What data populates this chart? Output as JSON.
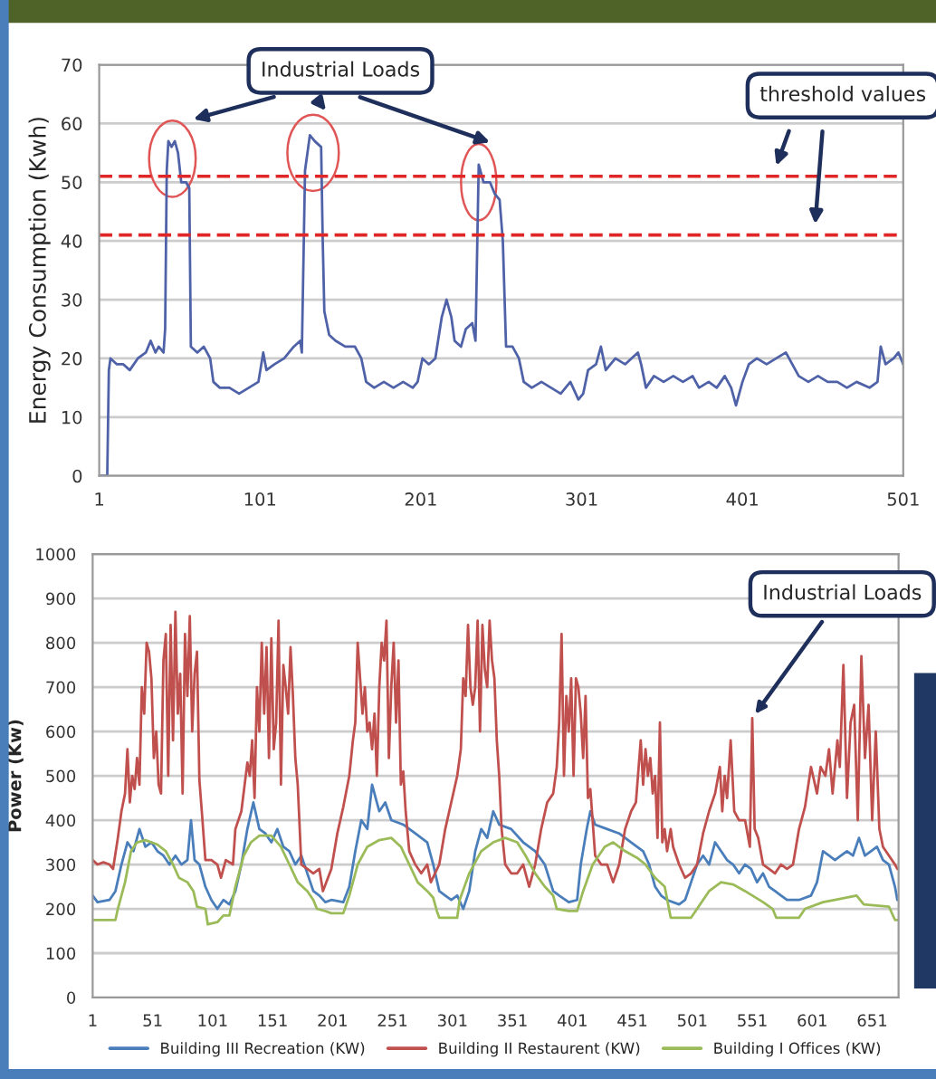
{
  "chart_data": [
    {
      "type": "line",
      "ylabel": "Energy Consumption (Kwh)",
      "xlim": [
        1,
        501
      ],
      "xticks": [
        1,
        101,
        201,
        301,
        401,
        501
      ],
      "ylim": [
        0,
        70
      ],
      "yticks": [
        0,
        10,
        20,
        30,
        40,
        50,
        60,
        70
      ],
      "grid": "y",
      "legend": false,
      "marker": "none",
      "line_style": "solid",
      "annotations": [
        "Industrial Loads",
        "threshold values"
      ],
      "ref_lines": [
        {
          "axis": "y",
          "value": 51,
          "color": "#e02626",
          "line_style": "dashed"
        },
        {
          "axis": "y",
          "value": 41,
          "color": "#e02626",
          "line_style": "dashed"
        }
      ],
      "series": [
        {
          "color": "#4f62a8",
          "x": [
            1,
            6,
            7,
            8,
            12,
            16,
            20,
            25,
            30,
            33,
            36,
            38,
            41,
            42,
            43,
            44,
            46,
            48,
            50,
            52,
            55,
            57,
            58,
            62,
            66,
            70,
            72,
            76,
            82,
            88,
            94,
            100,
            103,
            105,
            110,
            116,
            122,
            126,
            127,
            129,
            132,
            135,
            139,
            140,
            141,
            144,
            148,
            154,
            160,
            164,
            167,
            172,
            178,
            184,
            190,
            196,
            199,
            202,
            206,
            210,
            214,
            217,
            220,
            222,
            226,
            229,
            233,
            235,
            237,
            240,
            244,
            247,
            250,
            252,
            254,
            258,
            262,
            265,
            270,
            276,
            282,
            288,
            294,
            299,
            302,
            305,
            310,
            313,
            316,
            322,
            328,
            332,
            336,
            338,
            341,
            346,
            352,
            358,
            364,
            370,
            374,
            380,
            385,
            390,
            394,
            397,
            401,
            405,
            410,
            416,
            422,
            428,
            432,
            436,
            442,
            448,
            454,
            460,
            466,
            472,
            480,
            485,
            487,
            490,
            495,
            498,
            501
          ],
          "values": [
            0,
            0,
            18,
            20,
            19,
            19,
            18,
            20,
            21,
            23,
            21,
            22,
            21,
            25,
            52,
            57,
            56,
            57,
            55,
            50,
            50,
            49,
            22,
            21,
            22,
            20,
            16,
            15,
            15,
            14,
            15,
            16,
            21,
            18,
            19,
            20,
            22,
            23,
            21,
            52,
            58,
            57,
            56,
            40,
            28,
            24,
            23,
            22,
            22,
            20,
            16,
            15,
            16,
            15,
            16,
            15,
            16,
            20,
            19,
            20,
            27,
            30,
            27,
            23,
            22,
            25,
            26,
            23,
            53,
            50,
            50,
            48,
            47,
            40,
            22,
            22,
            20,
            16,
            15,
            16,
            15,
            14,
            16,
            13,
            14,
            18,
            19,
            22,
            18,
            20,
            19,
            20,
            21,
            19,
            15,
            17,
            16,
            17,
            16,
            17,
            15,
            16,
            15,
            17,
            15,
            12,
            16,
            19,
            20,
            19,
            20,
            21,
            19,
            17,
            16,
            17,
            16,
            16,
            15,
            16,
            15,
            16,
            22,
            19,
            20,
            21,
            19
          ]
        }
      ]
    },
    {
      "type": "line",
      "ylabel": "Power (Kw)",
      "xlim": [
        1,
        673
      ],
      "xticks": [
        1,
        51,
        101,
        151,
        201,
        251,
        301,
        351,
        401,
        451,
        501,
        551,
        601,
        651
      ],
      "ylim": [
        0,
        1000
      ],
      "yticks": [
        0,
        100,
        200,
        300,
        400,
        500,
        600,
        700,
        800,
        900,
        1000
      ],
      "grid": "y",
      "legend": "bottom",
      "marker": "none",
      "line_style": "solid",
      "annotations": [
        {
          "text": "Industrial Loads",
          "x": 551,
          "y": 630
        }
      ],
      "series": [
        {
          "name": "Building III Recreation (KW)",
          "color": "#4a7ebb",
          "x": [
            1,
            5,
            15,
            20,
            25,
            30,
            35,
            40,
            45,
            50,
            55,
            60,
            65,
            70,
            75,
            80,
            83,
            86,
            90,
            95,
            100,
            105,
            110,
            115,
            120,
            125,
            130,
            135,
            140,
            145,
            150,
            155,
            160,
            165,
            170,
            175,
            180,
            185,
            190,
            195,
            200,
            210,
            215,
            220,
            225,
            230,
            234,
            240,
            245,
            250,
            260,
            270,
            280,
            285,
            290,
            295,
            300,
            305,
            310,
            315,
            320,
            325,
            330,
            335,
            340,
            350,
            360,
            370,
            378,
            385,
            390,
            398,
            405,
            408,
            413,
            416,
            420,
            430,
            440,
            450,
            460,
            465,
            470,
            475,
            480,
            490,
            495,
            500,
            505,
            510,
            515,
            520,
            525,
            530,
            535,
            540,
            545,
            550,
            555,
            560,
            565,
            570,
            575,
            580,
            590,
            600,
            605,
            610,
            615,
            620,
            625,
            630,
            635,
            640,
            645,
            650,
            655,
            660,
            665,
            670,
            672
          ],
          "values": [
            230,
            215,
            220,
            240,
            300,
            350,
            330,
            380,
            340,
            350,
            330,
            320,
            300,
            320,
            300,
            310,
            400,
            310,
            300,
            250,
            220,
            200,
            220,
            210,
            240,
            300,
            380,
            440,
            380,
            370,
            350,
            380,
            340,
            330,
            300,
            320,
            280,
            240,
            230,
            215,
            220,
            215,
            250,
            330,
            400,
            380,
            480,
            420,
            440,
            400,
            390,
            370,
            350,
            300,
            240,
            230,
            220,
            230,
            200,
            240,
            330,
            380,
            360,
            420,
            390,
            380,
            350,
            330,
            300,
            240,
            230,
            215,
            220,
            300,
            380,
            420,
            390,
            380,
            370,
            350,
            330,
            300,
            250,
            230,
            220,
            210,
            220,
            260,
            300,
            320,
            300,
            350,
            330,
            310,
            300,
            280,
            300,
            290,
            260,
            280,
            250,
            240,
            230,
            220,
            220,
            230,
            260,
            330,
            320,
            310,
            320,
            330,
            320,
            360,
            320,
            330,
            340,
            310,
            300,
            250,
            220
          ]
        },
        {
          "name": "Building II Restaurent (KW)",
          "color": "#c0504d",
          "x": [
            1,
            5,
            10,
            15,
            18,
            22,
            25,
            28,
            30,
            32,
            34,
            36,
            38,
            40,
            42,
            44,
            46,
            48,
            50,
            52,
            54,
            56,
            58,
            60,
            62,
            64,
            66,
            68,
            70,
            72,
            74,
            76,
            78,
            80,
            82,
            84,
            86,
            88,
            90,
            92,
            95,
            100,
            105,
            108,
            112,
            118,
            120,
            125,
            130,
            132,
            134,
            136,
            138,
            140,
            142,
            144,
            146,
            148,
            150,
            152,
            154,
            156,
            158,
            160,
            162,
            164,
            166,
            168,
            170,
            172,
            175,
            180,
            185,
            190,
            193,
            200,
            205,
            210,
            215,
            218,
            220,
            222,
            224,
            226,
            228,
            230,
            232,
            234,
            236,
            238,
            240,
            242,
            244,
            246,
            248,
            250,
            252,
            254,
            256,
            258,
            260,
            262,
            265,
            270,
            275,
            280,
            283,
            290,
            295,
            300,
            305,
            308,
            310,
            312,
            314,
            316,
            318,
            320,
            322,
            324,
            326,
            328,
            330,
            332,
            334,
            336,
            338,
            340,
            342,
            345,
            350,
            355,
            360,
            365,
            370,
            375,
            380,
            385,
            388,
            390,
            392,
            394,
            396,
            398,
            400,
            402,
            404,
            406,
            408,
            410,
            412,
            414,
            416,
            420,
            425,
            430,
            435,
            440,
            445,
            450,
            454,
            458,
            460,
            462,
            464,
            466,
            468,
            470,
            472,
            474,
            476,
            478,
            480,
            483,
            485,
            490,
            495,
            500,
            505,
            510,
            515,
            520,
            524,
            526,
            528,
            530,
            533,
            536,
            540,
            545,
            549,
            551,
            553,
            556,
            560,
            565,
            570,
            575,
            580,
            585,
            590,
            595,
            600,
            605,
            608,
            612,
            615,
            618,
            622,
            624,
            627,
            630,
            633,
            636,
            639,
            642,
            645,
            648,
            651,
            654,
            657,
            660,
            665,
            670,
            672
          ],
          "values": [
            310,
            300,
            305,
            300,
            290,
            360,
            420,
            460,
            560,
            440,
            500,
            470,
            540,
            480,
            700,
            640,
            800,
            780,
            720,
            540,
            600,
            480,
            460,
            760,
            820,
            500,
            840,
            580,
            870,
            640,
            730,
            460,
            820,
            680,
            860,
            600,
            730,
            780,
            490,
            420,
            310,
            310,
            300,
            270,
            310,
            300,
            380,
            420,
            530,
            500,
            580,
            450,
            700,
            600,
            800,
            640,
            790,
            540,
            810,
            560,
            620,
            850,
            480,
            750,
            700,
            640,
            790,
            680,
            540,
            480,
            300,
            290,
            280,
            290,
            240,
            290,
            370,
            430,
            500,
            580,
            620,
            800,
            720,
            640,
            700,
            600,
            620,
            560,
            640,
            500,
            700,
            800,
            760,
            850,
            540,
            700,
            800,
            620,
            760,
            480,
            510,
            420,
            330,
            300,
            280,
            300,
            260,
            300,
            380,
            440,
            500,
            560,
            720,
            680,
            840,
            700,
            660,
            700,
            850,
            600,
            840,
            740,
            700,
            850,
            760,
            720,
            580,
            500,
            380,
            300,
            280,
            280,
            300,
            250,
            300,
            380,
            440,
            460,
            520,
            620,
            820,
            500,
            680,
            600,
            720,
            500,
            720,
            700,
            640,
            540,
            680,
            450,
            470,
            320,
            300,
            300,
            260,
            300,
            380,
            420,
            440,
            580,
            480,
            560,
            500,
            540,
            460,
            500,
            360,
            620,
            350,
            380,
            330,
            380,
            340,
            300,
            270,
            280,
            300,
            370,
            420,
            460,
            520,
            420,
            500,
            450,
            580,
            420,
            400,
            400,
            340,
            630,
            380,
            360,
            300,
            290,
            280,
            300,
            290,
            300,
            380,
            430,
            520,
            460,
            520,
            500,
            560,
            460,
            580,
            520,
            750,
            450,
            620,
            660,
            400,
            770,
            540,
            660,
            400,
            600,
            380,
            340,
            320,
            300,
            290
          ]
        },
        {
          "name": "Building I Offices (KW)",
          "color": "#9bbb59",
          "x": [
            1,
            20,
            22,
            28,
            33,
            38,
            45,
            55,
            62,
            68,
            73,
            80,
            85,
            88,
            95,
            97,
            105,
            110,
            115,
            120,
            127,
            133,
            140,
            150,
            158,
            165,
            172,
            180,
            185,
            188,
            195,
            200,
            210,
            215,
            222,
            230,
            240,
            250,
            258,
            265,
            272,
            280,
            285,
            288,
            290,
            300,
            305,
            307,
            315,
            325,
            335,
            345,
            355,
            362,
            370,
            378,
            385,
            388,
            398,
            405,
            410,
            418,
            428,
            435,
            445,
            455,
            462,
            470,
            478,
            483,
            500,
            505,
            515,
            525,
            535,
            545,
            560,
            568,
            571,
            590,
            595,
            610,
            620,
            638,
            644,
            665,
            670,
            672
          ],
          "values": [
            175,
            175,
            200,
            260,
            330,
            350,
            355,
            345,
            330,
            300,
            270,
            260,
            240,
            205,
            200,
            165,
            170,
            185,
            185,
            250,
            320,
            350,
            365,
            365,
            340,
            300,
            260,
            240,
            220,
            200,
            195,
            190,
            190,
            230,
            300,
            340,
            355,
            360,
            340,
            300,
            260,
            240,
            225,
            195,
            180,
            180,
            180,
            220,
            280,
            330,
            350,
            360,
            350,
            320,
            280,
            250,
            230,
            200,
            195,
            195,
            240,
            300,
            340,
            350,
            330,
            315,
            300,
            270,
            250,
            180,
            180,
            200,
            240,
            260,
            255,
            240,
            215,
            200,
            180,
            180,
            200,
            215,
            220,
            230,
            210,
            205,
            175,
            175
          ]
        }
      ]
    }
  ]
}
